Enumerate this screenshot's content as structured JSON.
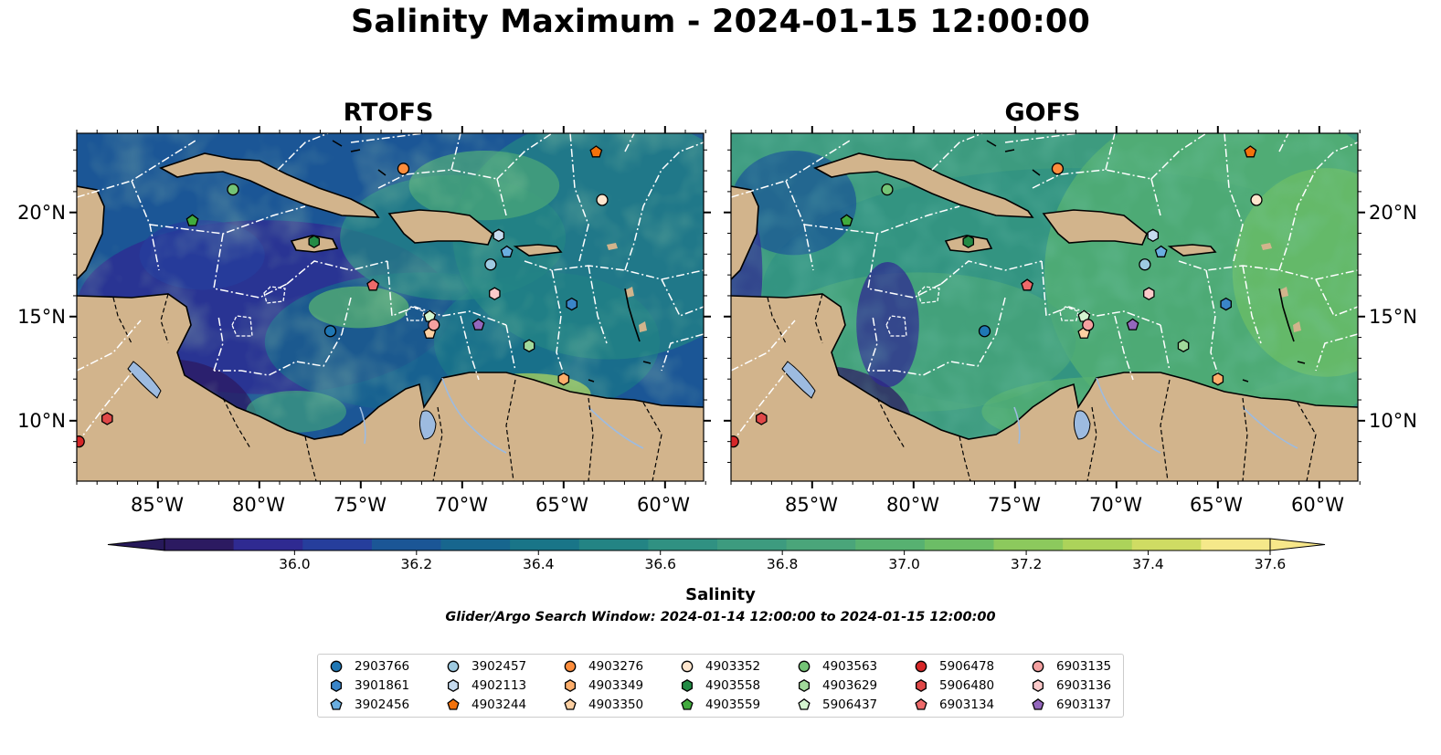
{
  "title": "Salinity Maximum - 2024-01-15 12:00:00",
  "panels": [
    {
      "name": "rtofs",
      "title": "RTOFS"
    },
    {
      "name": "gofs",
      "title": "GOFS"
    }
  ],
  "axes": {
    "lon_labels": [
      "85°W",
      "80°W",
      "75°W",
      "70°W",
      "65°W",
      "60°W"
    ],
    "lat_labels": [
      "20°N",
      "15°N",
      "10°N"
    ]
  },
  "colorbar": {
    "label": "Salinity",
    "min": 35.9,
    "max": 37.6,
    "step": 0.1,
    "ticks": [
      "36.0",
      "36.2",
      "36.4",
      "36.6",
      "36.8",
      "37.0",
      "37.2",
      "37.4",
      "37.6"
    ],
    "colors": [
      "#2c1a61",
      "#2f2a91",
      "#263e9c",
      "#1b5696",
      "#17668e",
      "#197588",
      "#238484",
      "#309182",
      "#3d9b7f",
      "#4aa57a",
      "#57b171",
      "#6cbd66",
      "#8cc95d",
      "#acd35a",
      "#cfdc63",
      "#f5e88a"
    ],
    "under_color": "#27195a",
    "over_color": "#f7e78a"
  },
  "window_text": "Glider/Argo Search Window: 2024-01-14 12:00:00 to 2024-01-15 12:00:00",
  "map_colors": {
    "land": "#d2b48c",
    "lake": "#9dbbe0",
    "coast": "#000000",
    "eez": "#ffffff"
  },
  "legend": [
    {
      "id": "2903766",
      "shape": "circle",
      "color": "#1f77b4"
    },
    {
      "id": "3901861",
      "shape": "hexagon",
      "color": "#3a85c8"
    },
    {
      "id": "3902456",
      "shape": "pentagon",
      "color": "#6aaee0"
    },
    {
      "id": "3902457",
      "shape": "circle",
      "color": "#9ecae1"
    },
    {
      "id": "4902113",
      "shape": "hexagon",
      "color": "#c6dbef"
    },
    {
      "id": "4903244",
      "shape": "pentagon",
      "color": "#f4720b"
    },
    {
      "id": "4903276",
      "shape": "circle",
      "color": "#fd8d3c"
    },
    {
      "id": "4903349",
      "shape": "hexagon",
      "color": "#fdae6b"
    },
    {
      "id": "4903350",
      "shape": "pentagon",
      "color": "#fdd0a2"
    },
    {
      "id": "4903352",
      "shape": "circle",
      "color": "#fee6ce"
    },
    {
      "id": "4903558",
      "shape": "hexagon",
      "color": "#238b45"
    },
    {
      "id": "4903559",
      "shape": "pentagon",
      "color": "#41ab3d"
    },
    {
      "id": "4903563",
      "shape": "circle",
      "color": "#74c476"
    },
    {
      "id": "4903629",
      "shape": "hexagon",
      "color": "#a1d99b"
    },
    {
      "id": "5906437",
      "shape": "pentagon",
      "color": "#d5f5d0"
    },
    {
      "id": "5906478",
      "shape": "circle",
      "color": "#d62728"
    },
    {
      "id": "5906480",
      "shape": "hexagon",
      "color": "#e04848"
    },
    {
      "id": "6903134",
      "shape": "pentagon",
      "color": "#ee6a6a"
    },
    {
      "id": "6903135",
      "shape": "circle",
      "color": "#f4a0a0"
    },
    {
      "id": "6903136",
      "shape": "hexagon",
      "color": "#fbcaca"
    },
    {
      "id": "6903137",
      "shape": "pentagon",
      "color": "#9467bd"
    }
  ],
  "floats": [
    {
      "id": "2903766",
      "lon": -76.5,
      "lat": 14.3
    },
    {
      "id": "3901861",
      "lon": -64.6,
      "lat": 15.6
    },
    {
      "id": "3902456",
      "lon": -67.8,
      "lat": 18.1
    },
    {
      "id": "3902457",
      "lon": -68.6,
      "lat": 17.5
    },
    {
      "id": "4902113",
      "lon": -68.2,
      "lat": 18.9
    },
    {
      "id": "4903244",
      "lon": -63.4,
      "lat": 22.9
    },
    {
      "id": "4903276",
      "lon": -72.9,
      "lat": 22.1
    },
    {
      "id": "4903349",
      "lon": -65.0,
      "lat": 12.0
    },
    {
      "id": "4903350",
      "lon": -71.6,
      "lat": 14.2
    },
    {
      "id": "4903352",
      "lon": -63.1,
      "lat": 20.6
    },
    {
      "id": "4903558",
      "lon": -77.3,
      "lat": 18.6
    },
    {
      "id": "4903559",
      "lon": -83.3,
      "lat": 19.6
    },
    {
      "id": "4903563",
      "lon": -81.3,
      "lat": 21.1
    },
    {
      "id": "4903629",
      "lon": -66.7,
      "lat": 13.6
    },
    {
      "id": "5906437",
      "lon": -71.6,
      "lat": 15.0
    },
    {
      "id": "5906478",
      "lon": -88.9,
      "lat": 9.0
    },
    {
      "id": "5906480",
      "lon": -87.5,
      "lat": 10.1
    },
    {
      "id": "6903134",
      "lon": -74.4,
      "lat": 16.5
    },
    {
      "id": "6903135",
      "lon": -71.4,
      "lat": 14.6
    },
    {
      "id": "6903136",
      "lon": -68.4,
      "lat": 16.1
    },
    {
      "id": "6903137",
      "lon": -69.2,
      "lat": 14.6
    }
  ]
}
